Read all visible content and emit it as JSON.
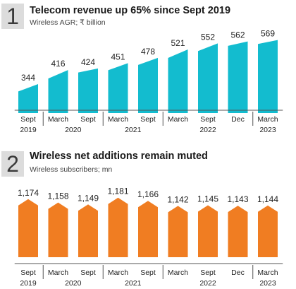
{
  "chart_data": [
    {
      "type": "bar",
      "panel_number": "1",
      "title": "Telecom revenue up 65% since Sept 2019",
      "subtitle": "Wireless AGR; ₹ billion",
      "categories": [
        "Sept",
        "March",
        "Sept",
        "March",
        "Sept",
        "March",
        "Sept",
        "Dec",
        "March"
      ],
      "years": [
        {
          "label": "2019",
          "span": [
            0,
            0
          ]
        },
        {
          "label": "2020",
          "span": [
            1,
            2
          ]
        },
        {
          "label": "2021",
          "span": [
            3,
            4
          ]
        },
        {
          "label": "2022",
          "span": [
            5,
            7
          ]
        },
        {
          "label": "2023",
          "span": [
            8,
            8
          ]
        }
      ],
      "values": [
        344,
        416,
        424,
        451,
        478,
        521,
        552,
        562,
        569
      ],
      "value_labels": [
        "344",
        "416",
        "424",
        "451",
        "478",
        "521",
        "552",
        "562",
        "569"
      ],
      "color": "#13bccf",
      "shape": "sloped-top"
    },
    {
      "type": "bar",
      "panel_number": "2",
      "title": "Wireless net additions remain muted",
      "subtitle": "Wireless subscribers; mn",
      "categories": [
        "Sept",
        "March",
        "Sept",
        "March",
        "Sept",
        "March",
        "Sept",
        "Dec",
        "March"
      ],
      "years": [
        {
          "label": "2019",
          "span": [
            0,
            0
          ]
        },
        {
          "label": "2020",
          "span": [
            1,
            2
          ]
        },
        {
          "label": "2021",
          "span": [
            3,
            4
          ]
        },
        {
          "label": "2022",
          "span": [
            5,
            7
          ]
        },
        {
          "label": "2023",
          "span": [
            8,
            8
          ]
        }
      ],
      "values": [
        1174,
        1158,
        1149,
        1181,
        1166,
        1142,
        1145,
        1143,
        1144
      ],
      "value_labels": [
        "1,174",
        "1,158",
        "1,149",
        "1,181",
        "1,166",
        "1,142",
        "1,145",
        "1,143",
        "1,144"
      ],
      "color": "#f07d22",
      "shape": "arrow-top"
    }
  ]
}
